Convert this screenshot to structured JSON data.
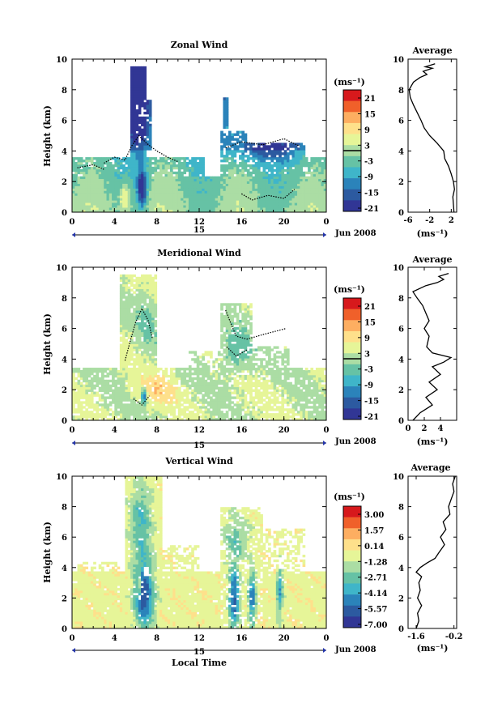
{
  "figure": {
    "date_label": "Jun 2008",
    "day_label": "15",
    "x_title": "Local Time",
    "y_title": "Height (km)",
    "unit_label": "(ms⁻¹)",
    "profile_title": "Average",
    "profile_xlabel": "(ms⁻¹)"
  },
  "chart_data": [
    {
      "type": "heatmap",
      "name": "zonal",
      "title": "Zonal Wind",
      "xlabel": "Local Time",
      "ylabel": "Height (km)",
      "xlim": [
        0,
        24
      ],
      "ylim": [
        0,
        10
      ],
      "x_ticks": [
        "0",
        "4",
        "8",
        "12",
        "16",
        "20",
        "0"
      ],
      "y_ticks": [
        "0",
        "2",
        "4",
        "6",
        "8",
        "10"
      ],
      "colorbar": {
        "labels": [
          "21",
          "15",
          "9",
          "3",
          "-3",
          "-9",
          "-15",
          "-21"
        ],
        "colors": [
          "#d7191c",
          "#f0602a",
          "#fdae61",
          "#fee08b",
          "#e6f598",
          "#abdda4",
          "#66c2a5",
          "#3fb5c9",
          "#2b83ba",
          "#2c5aa0",
          "#313695"
        ],
        "zero_line": true
      },
      "profile": {
        "title": "Average",
        "xlim": [
          -6,
          3
        ],
        "x_ticks": [
          "-6",
          "-2",
          "2"
        ],
        "y_ticks": [
          "0",
          "2",
          "4",
          "6",
          "8",
          "10"
        ],
        "points": [
          [
            2.5,
            0
          ],
          [
            2.4,
            0.5
          ],
          [
            2.3,
            1
          ],
          [
            2.6,
            1.5
          ],
          [
            2.4,
            2
          ],
          [
            2.0,
            2.5
          ],
          [
            1.5,
            3
          ],
          [
            0.8,
            3.5
          ],
          [
            0.6,
            4
          ],
          [
            -0.6,
            4.5
          ],
          [
            -2.0,
            5
          ],
          [
            -3.0,
            5.5
          ],
          [
            -3.6,
            6
          ],
          [
            -4.3,
            6.5
          ],
          [
            -5.0,
            7
          ],
          [
            -5.6,
            7.5
          ],
          [
            -5.8,
            8
          ],
          [
            -5.0,
            8.5
          ],
          [
            -3.8,
            8.8
          ],
          [
            -2.5,
            9.0
          ],
          [
            -3.2,
            9.2
          ],
          [
            -1.5,
            9.4
          ],
          [
            -2.8,
            9.5
          ],
          [
            -1.0,
            9.7
          ]
        ]
      }
    },
    {
      "type": "heatmap",
      "name": "meridional",
      "title": "Meridional Wind",
      "xlabel": "Local Time",
      "ylabel": "Height (km)",
      "xlim": [
        0,
        24
      ],
      "ylim": [
        0,
        10
      ],
      "x_ticks": [
        "0",
        "4",
        "8",
        "12",
        "16",
        "20",
        "0"
      ],
      "y_ticks": [
        "0",
        "2",
        "4",
        "6",
        "8",
        "10"
      ],
      "colorbar": {
        "labels": [
          "21",
          "15",
          "9",
          "3",
          "-3",
          "-9",
          "-15",
          "-21"
        ],
        "colors": [
          "#d7191c",
          "#f0602a",
          "#fdae61",
          "#fee08b",
          "#e6f598",
          "#abdda4",
          "#66c2a5",
          "#3fb5c9",
          "#2b83ba",
          "#2c5aa0",
          "#313695"
        ],
        "zero_line": true
      },
      "profile": {
        "title": "Average",
        "xlim": [
          0,
          6
        ],
        "x_ticks": [
          "0",
          "2",
          "4"
        ],
        "y_ticks": [
          "0",
          "2",
          "4",
          "6",
          "8",
          "10"
        ],
        "points": [
          [
            0.6,
            0
          ],
          [
            1.5,
            0.5
          ],
          [
            3.0,
            1
          ],
          [
            2.2,
            1.5
          ],
          [
            3.6,
            2
          ],
          [
            2.6,
            2.5
          ],
          [
            4.0,
            3
          ],
          [
            3.0,
            3.5
          ],
          [
            4.4,
            3.8
          ],
          [
            5.3,
            4.1
          ],
          [
            3.0,
            4.4
          ],
          [
            2.3,
            4.8
          ],
          [
            2.6,
            5.5
          ],
          [
            2.0,
            6
          ],
          [
            2.6,
            6.5
          ],
          [
            2.2,
            7
          ],
          [
            1.8,
            7.5
          ],
          [
            1.1,
            8
          ],
          [
            0.6,
            8.4
          ],
          [
            2.2,
            8.8
          ],
          [
            3.6,
            9.0
          ],
          [
            4.4,
            9.2
          ],
          [
            3.8,
            9.4
          ],
          [
            5.0,
            9.6
          ]
        ]
      }
    },
    {
      "type": "heatmap",
      "name": "vertical",
      "title": "Vertical Wind",
      "xlabel": "Local Time",
      "ylabel": "Height (km)",
      "xlim": [
        0,
        24
      ],
      "ylim": [
        0,
        10
      ],
      "x_ticks": [
        "0",
        "4",
        "8",
        "12",
        "16",
        "20",
        "0"
      ],
      "y_ticks": [
        "0",
        "2",
        "4",
        "6",
        "8",
        "10"
      ],
      "colorbar": {
        "labels": [
          "3.00",
          "1.57",
          "0.14",
          "-1.28",
          "-2.71",
          "-4.14",
          "-5.57",
          "-7.00"
        ],
        "colors": [
          "#d7191c",
          "#f0602a",
          "#fdae61",
          "#fee08b",
          "#e6f598",
          "#abdda4",
          "#66c2a5",
          "#3fb5c9",
          "#2b83ba",
          "#2c5aa0",
          "#313695"
        ],
        "zero_line": false
      },
      "profile": {
        "title": "Average",
        "xlim": [
          -1.9,
          -0.1
        ],
        "x_ticks": [
          "-1.6",
          "-0.2"
        ],
        "y_ticks": [
          "0",
          "2",
          "4",
          "6",
          "8",
          "10"
        ],
        "points": [
          [
            -1.6,
            0
          ],
          [
            -1.5,
            0.5
          ],
          [
            -1.55,
            1
          ],
          [
            -1.4,
            1.5
          ],
          [
            -1.55,
            2
          ],
          [
            -1.45,
            2.5
          ],
          [
            -1.5,
            3
          ],
          [
            -1.4,
            3.4
          ],
          [
            -1.6,
            3.7
          ],
          [
            -1.45,
            4.0
          ],
          [
            -1.2,
            4.3
          ],
          [
            -0.9,
            4.6
          ],
          [
            -0.75,
            5
          ],
          [
            -0.55,
            5.5
          ],
          [
            -0.7,
            6
          ],
          [
            -0.5,
            6.5
          ],
          [
            -0.6,
            7
          ],
          [
            -0.35,
            7.5
          ],
          [
            -0.4,
            8
          ],
          [
            -0.3,
            8.5
          ],
          [
            -0.2,
            9
          ],
          [
            -0.25,
            9.5
          ],
          [
            -0.15,
            10
          ]
        ]
      }
    }
  ]
}
